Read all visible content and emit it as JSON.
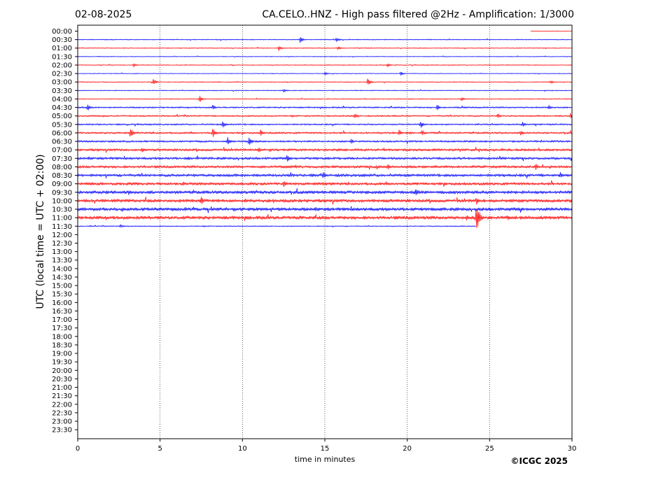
{
  "chart_data": {
    "type": "line",
    "title_left": "02-08-2025",
    "title_right": "CA.CELO..HNZ - High pass filtered @2Hz - Amplification: 1/3000",
    "xlabel": "time in minutes",
    "ylabel": "UTC (local time = UTC + 02:00)",
    "copyright": "©ICGC 2025",
    "xlim": [
      0,
      30
    ],
    "x_ticks": [
      "0",
      "5",
      "10",
      "15",
      "20",
      "25",
      "30"
    ],
    "x_tick_values": [
      0,
      5,
      10,
      15,
      20,
      25,
      30
    ],
    "vertical_grid": "dotted at each x tick",
    "row_labels": [
      "00:00",
      "00:30",
      "01:00",
      "01:30",
      "02:00",
      "02:30",
      "03:00",
      "03:30",
      "04:00",
      "04:30",
      "05:00",
      "05:30",
      "06:00",
      "06:30",
      "07:00",
      "07:30",
      "08:00",
      "08:30",
      "09:00",
      "09:30",
      "10:00",
      "10:30",
      "11:00",
      "11:30",
      "12:00",
      "12:30",
      "13:00",
      "13:30",
      "14:00",
      "14:30",
      "15:00",
      "15:30",
      "16:00",
      "16:30",
      "17:00",
      "17:30",
      "18:00",
      "18:30",
      "19:00",
      "19:30",
      "20:00",
      "20:30",
      "21:00",
      "21:30",
      "22:00",
      "22:30",
      "23:00",
      "23:30"
    ],
    "row_colors": [
      "#ff0000",
      "#0000ff"
    ],
    "traces_recorded_rows": 24,
    "last_row_end_minute": 24.2,
    "first_row_start_minute": 27.5,
    "noise_level_by_row": [
      0.3,
      0.5,
      0.5,
      0.4,
      0.5,
      0.4,
      0.5,
      0.5,
      0.5,
      0.9,
      0.9,
      0.9,
      1.1,
      1.1,
      1.4,
      1.4,
      1.5,
      1.6,
      1.6,
      1.8,
      1.8,
      1.8,
      1.9,
      0.6
    ],
    "events": [
      {
        "row": 1,
        "minute": 13.5,
        "amp": 5
      },
      {
        "row": 1,
        "minute": 15.7,
        "amp": 4
      },
      {
        "row": 2,
        "minute": 12.2,
        "amp": 4
      },
      {
        "row": 2,
        "minute": 15.8,
        "amp": 3
      },
      {
        "row": 4,
        "minute": 3.4,
        "amp": 3
      },
      {
        "row": 4,
        "minute": 18.8,
        "amp": 3
      },
      {
        "row": 5,
        "minute": 15.0,
        "amp": 3
      },
      {
        "row": 5,
        "minute": 19.6,
        "amp": 3
      },
      {
        "row": 6,
        "minute": 4.6,
        "amp": 5
      },
      {
        "row": 6,
        "minute": 17.6,
        "amp": 6
      },
      {
        "row": 6,
        "minute": 28.7,
        "amp": 3
      },
      {
        "row": 7,
        "minute": 12.5,
        "amp": 3
      },
      {
        "row": 8,
        "minute": 7.4,
        "amp": 5
      },
      {
        "row": 8,
        "minute": 23.3,
        "amp": 3
      },
      {
        "row": 9,
        "minute": 0.6,
        "amp": 5
      },
      {
        "row": 9,
        "minute": 8.2,
        "amp": 4
      },
      {
        "row": 9,
        "minute": 21.8,
        "amp": 5
      },
      {
        "row": 9,
        "minute": 28.6,
        "amp": 4
      },
      {
        "row": 10,
        "minute": 16.8,
        "amp": 4
      },
      {
        "row": 10,
        "minute": 25.5,
        "amp": 4
      },
      {
        "row": 10,
        "minute": 29.9,
        "amp": 4
      },
      {
        "row": 11,
        "minute": 8.8,
        "amp": 5
      },
      {
        "row": 11,
        "minute": 20.8,
        "amp": 6
      },
      {
        "row": 11,
        "minute": 27.0,
        "amp": 4
      },
      {
        "row": 12,
        "minute": 3.2,
        "amp": 7
      },
      {
        "row": 12,
        "minute": 8.2,
        "amp": 7
      },
      {
        "row": 12,
        "minute": 11.1,
        "amp": 5
      },
      {
        "row": 12,
        "minute": 19.5,
        "amp": 5
      },
      {
        "row": 12,
        "minute": 20.9,
        "amp": 5
      },
      {
        "row": 12,
        "minute": 26.9,
        "amp": 5
      },
      {
        "row": 13,
        "minute": 9.1,
        "amp": 6
      },
      {
        "row": 13,
        "minute": 10.4,
        "amp": 7
      },
      {
        "row": 13,
        "minute": 16.6,
        "amp": 4
      },
      {
        "row": 14,
        "minute": 3.9,
        "amp": 4
      },
      {
        "row": 14,
        "minute": 11.0,
        "amp": 4
      },
      {
        "row": 15,
        "minute": 6.7,
        "amp": 4
      },
      {
        "row": 15,
        "minute": 12.7,
        "amp": 6
      },
      {
        "row": 16,
        "minute": 18.8,
        "amp": 5
      },
      {
        "row": 16,
        "minute": 27.8,
        "amp": 5
      },
      {
        "row": 17,
        "minute": 14.9,
        "amp": 6
      },
      {
        "row": 17,
        "minute": 29.3,
        "amp": 5
      },
      {
        "row": 18,
        "minute": 12.5,
        "amp": 5
      },
      {
        "row": 18,
        "minute": 6.4,
        "amp": 4
      },
      {
        "row": 19,
        "minute": 20.5,
        "amp": 6
      },
      {
        "row": 19,
        "minute": 3.1,
        "amp": 4
      },
      {
        "row": 20,
        "minute": 7.5,
        "amp": 6
      },
      {
        "row": 20,
        "minute": 24.2,
        "amp": 6
      },
      {
        "row": 21,
        "minute": 6.5,
        "amp": 4
      },
      {
        "row": 22,
        "minute": 24.2,
        "amp": 26
      },
      {
        "row": 22,
        "minute": 23.6,
        "amp": 4
      },
      {
        "row": 22,
        "minute": 26.1,
        "amp": 4
      },
      {
        "row": 23,
        "minute": 2.6,
        "amp": 3
      }
    ]
  }
}
